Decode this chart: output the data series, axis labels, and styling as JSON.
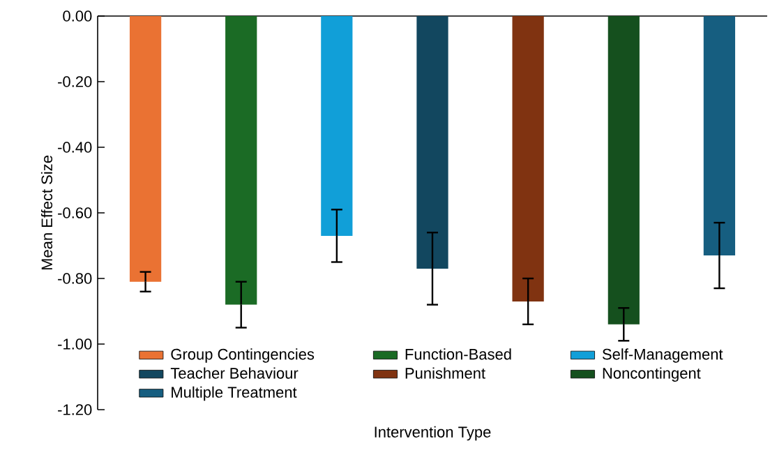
{
  "chart_data": {
    "type": "bar",
    "xlabel": "Intervention Type",
    "ylabel": "Mean Effect Size",
    "categories": [
      null,
      null,
      null,
      null,
      null,
      null,
      null
    ],
    "series": [
      {
        "name": "Group Contingencies",
        "color": "#ea7233",
        "values": [
          -0.81,
          null,
          null,
          null,
          null,
          null,
          null
        ],
        "errors": [
          0.03,
          null,
          null,
          null,
          null,
          null,
          null
        ]
      },
      {
        "name": "Function-Based",
        "color": "#1b6b25",
        "values": [
          null,
          -0.88,
          null,
          null,
          null,
          null,
          null
        ],
        "errors": [
          null,
          0.07,
          null,
          null,
          null,
          null,
          null
        ]
      },
      {
        "name": "Self-Management",
        "color": "#119fd8",
        "values": [
          null,
          null,
          -0.67,
          null,
          null,
          null,
          null
        ],
        "errors": [
          null,
          null,
          0.08,
          null,
          null,
          null,
          null
        ]
      },
      {
        "name": "Teacher Behaviour",
        "color": "#12475f",
        "values": [
          null,
          null,
          null,
          -0.77,
          null,
          null,
          null
        ],
        "errors": [
          null,
          null,
          null,
          0.11,
          null,
          null,
          null
        ]
      },
      {
        "name": "Punishment",
        "color": "#803311",
        "values": [
          null,
          null,
          null,
          null,
          -0.87,
          null,
          null
        ],
        "errors": [
          null,
          null,
          null,
          null,
          0.07,
          null,
          null
        ]
      },
      {
        "name": "Noncontingent",
        "color": "#15501e",
        "values": [
          null,
          null,
          null,
          null,
          null,
          -0.94,
          null
        ],
        "errors": [
          null,
          null,
          null,
          null,
          null,
          0.05,
          null
        ]
      },
      {
        "name": "Multiple Treatment",
        "color": "#165e80",
        "values": [
          null,
          null,
          null,
          null,
          null,
          null,
          -0.73
        ],
        "errors": [
          null,
          null,
          null,
          null,
          null,
          null,
          0.1
        ]
      }
    ],
    "ylim": [
      -1.2,
      0
    ],
    "yticks": [
      {
        "value": -1.2,
        "label": "-1.20"
      },
      {
        "value": -1.0,
        "label": "-1.00"
      },
      {
        "value": -0.8,
        "label": "-0.80"
      },
      {
        "value": -0.6,
        "label": "-0.60"
      },
      {
        "value": -0.4,
        "label": "-0.40"
      },
      {
        "value": -0.2,
        "label": "-0.20"
      },
      {
        "value": 0,
        "label": "0.00"
      }
    ],
    "legend": "bottom",
    "grid": false
  }
}
